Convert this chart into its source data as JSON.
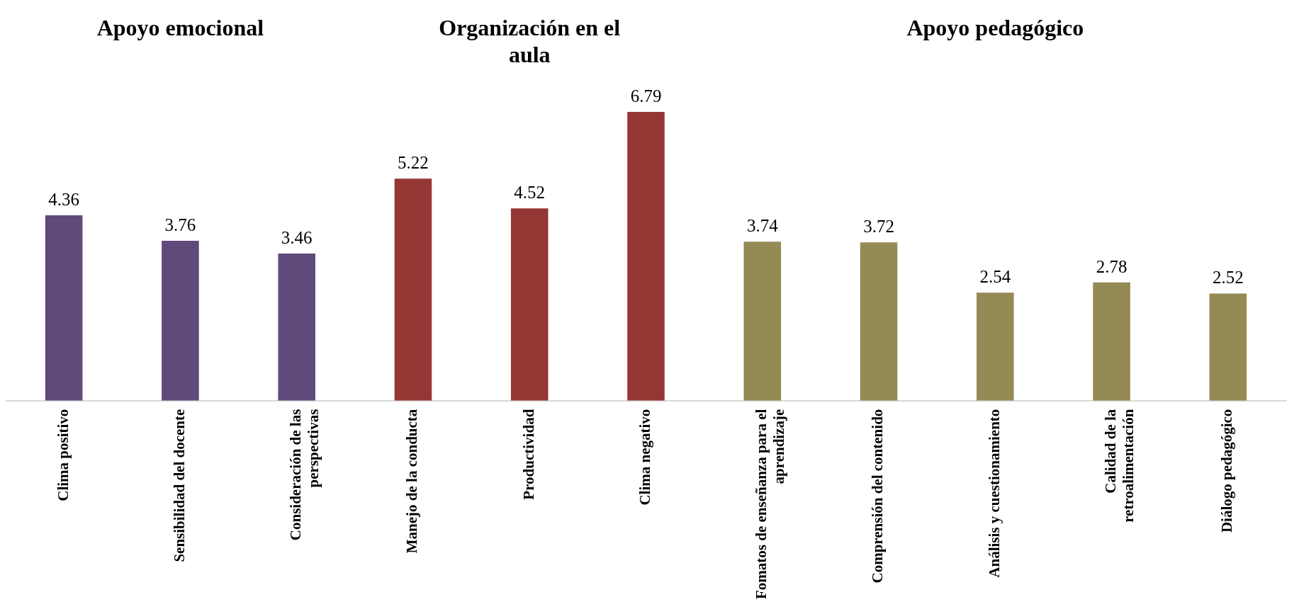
{
  "chart_data": {
    "type": "bar",
    "categories": [
      "Clima positivo",
      "Sensibilidad del docente",
      "Consideración de las perspectivas",
      "Manejo de la conducta",
      "Productividad",
      "Clima negativo",
      "Fomatos de enseñanza para el aprendizaje",
      "Comprensión del contenido",
      "Análisis y cuestionamiento",
      "Calidad de la retroalimentación",
      "Diálogo pedagógico"
    ],
    "values": [
      4.36,
      3.76,
      3.46,
      5.22,
      4.52,
      6.79,
      3.74,
      3.72,
      2.54,
      2.78,
      2.52
    ],
    "colors": [
      "#604a7b",
      "#604a7b",
      "#604a7b",
      "#953735",
      "#953735",
      "#953735",
      "#948a54",
      "#948a54",
      "#948a54",
      "#948a54",
      "#948a54"
    ],
    "annotations": [
      "Apoyo emocional",
      "Organización en el aula",
      "Apoyo pedagógico"
    ],
    "data_labels": true,
    "grid": false,
    "legend": false
  }
}
